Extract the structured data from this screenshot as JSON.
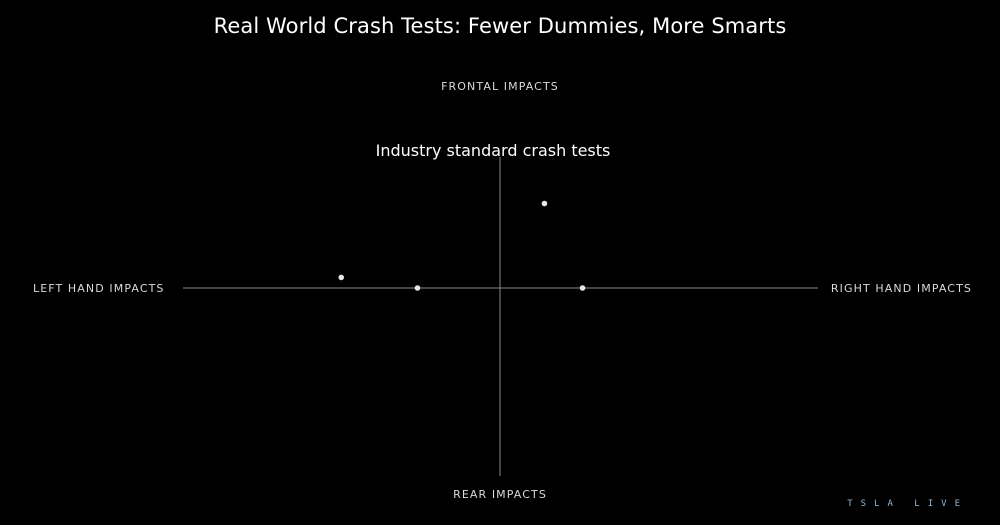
{
  "chart_data": {
    "type": "scatter",
    "title": "Real World Crash Tests: Fewer Dummies, More Smarts",
    "axis_labels": {
      "top": "FRONTAL IMPACTS",
      "bottom": "REAR IMPACTS",
      "left": "LEFT HAND IMPACTS",
      "right": "RIGHT HAND IMPACTS"
    },
    "annotation": "Industry standard crash tests",
    "xlim": [
      -1,
      1
    ],
    "ylim": [
      -1,
      1
    ],
    "grid": false,
    "points": [
      {
        "x": 0.14,
        "y": 0.48
      },
      {
        "x": -0.5,
        "y": 0.06
      },
      {
        "x": -0.26,
        "y": 0.0
      },
      {
        "x": 0.26,
        "y": 0.0
      }
    ],
    "marker_color": "#e6e6e6",
    "axis_color": "#8a8a8a"
  },
  "watermark": "TSLA LIVE"
}
